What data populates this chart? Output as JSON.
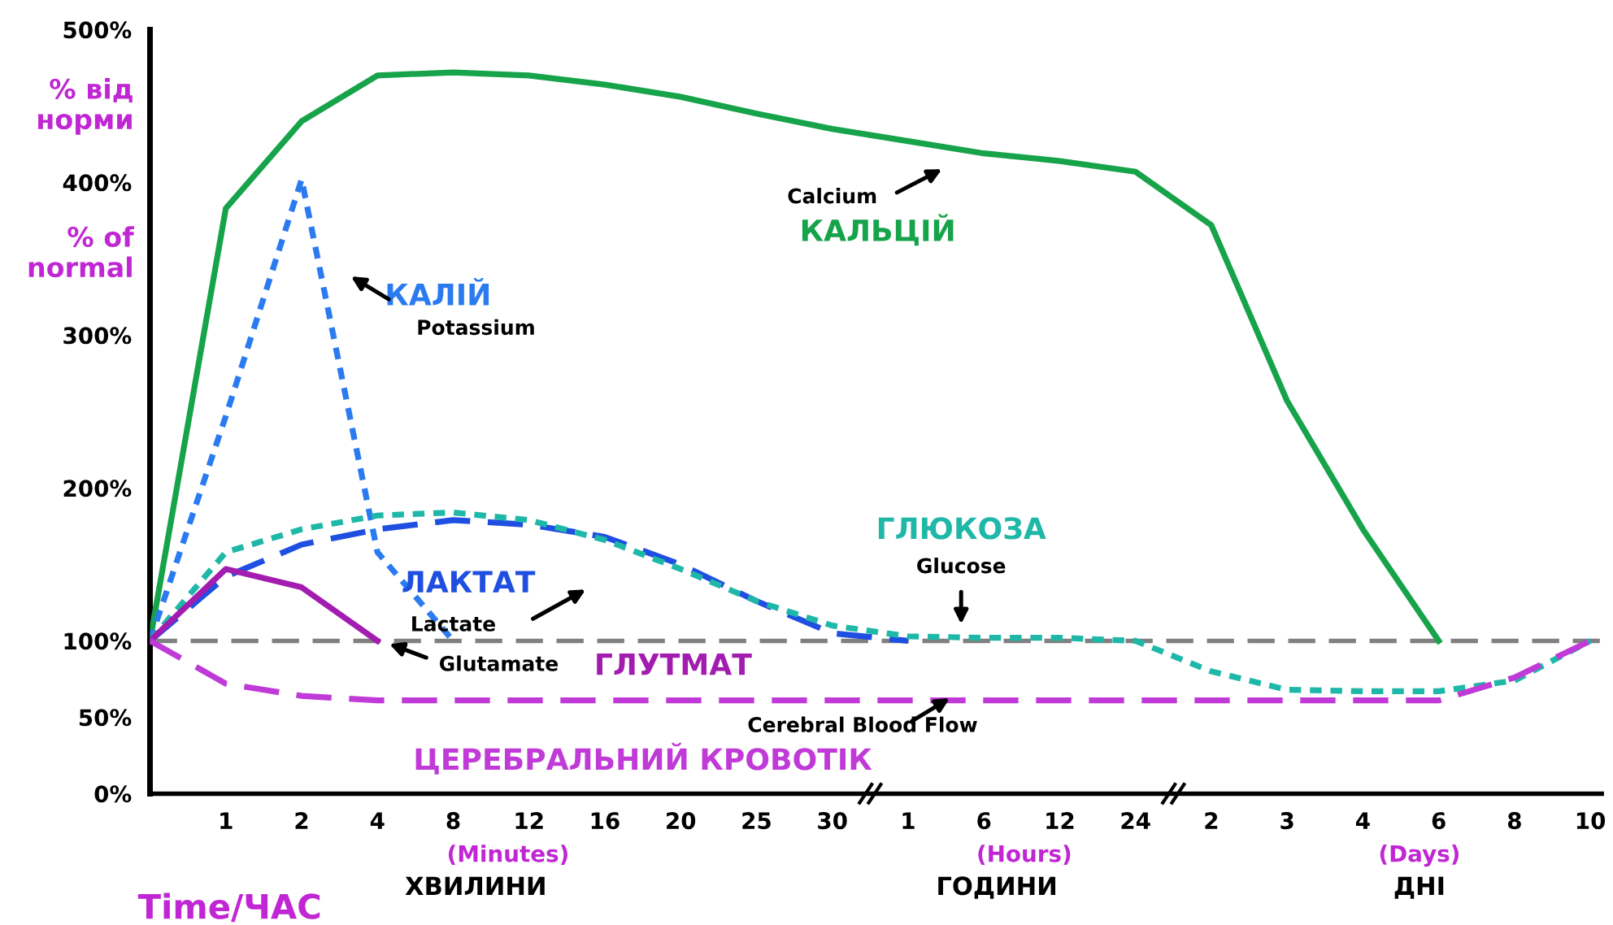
{
  "chart_data": {
    "type": "line",
    "ylabel": "% від норми",
    "xlabel": "Time/ЧАС",
    "categories": [
      null,
      "1",
      "2",
      "4",
      "8",
      "12",
      "16",
      "20",
      "25",
      "30",
      "1",
      "6",
      "12",
      "24",
      "2",
      "3",
      "4",
      "6",
      "8",
      "10"
    ],
    "series": [
      {
        "name": "КАЛЬЦІЙ",
        "color": "#16a34a",
        "line_style": "solid",
        "values": [
          100,
          383,
          440,
          470,
          472,
          470,
          464,
          456,
          445,
          435,
          427,
          419,
          414,
          407,
          372,
          257,
          173,
          100,
          null,
          null
        ]
      },
      {
        "name": "КАЛІЙ",
        "color": "#2b7bf0",
        "line_style": "dotted",
        "values": [
          100,
          247,
          402,
          158,
          100,
          null,
          null,
          null,
          null,
          null,
          null,
          null,
          null,
          null,
          null,
          null,
          null,
          null,
          null,
          null
        ]
      },
      {
        "name": "ЛАКТАТ",
        "color": "#1f4fe0",
        "line_style": "dashed",
        "values": [
          100,
          142,
          163,
          173,
          179,
          176,
          168,
          150,
          126,
          105,
          100,
          null,
          null,
          null,
          null,
          null,
          null,
          null,
          null,
          null
        ]
      },
      {
        "name": "ГЛЮКОЗА",
        "color": "#1fb8a8",
        "line_style": "dotted",
        "values": [
          100,
          158,
          173,
          182,
          184,
          179,
          166,
          147,
          126,
          110,
          103,
          102,
          102,
          100,
          80,
          68,
          67,
          67,
          74,
          100
        ]
      },
      {
        "name": "ГЛУТМАТ",
        "color": "#a21caf",
        "line_style": "solid",
        "values": [
          100,
          147,
          135,
          100,
          null,
          null,
          null,
          null,
          null,
          null,
          null,
          null,
          null,
          null,
          null,
          null,
          null,
          null,
          null,
          null
        ]
      },
      {
        "name": "ЦЕРЕБРАЛЬНИЙ КРОВОТІК",
        "color": "#c03ad8",
        "line_style": "dashed",
        "values": [
          100,
          72,
          64,
          61,
          61,
          61,
          61,
          61,
          61,
          61,
          61,
          61,
          61,
          61,
          61,
          61,
          61,
          61,
          76,
          100
        ]
      }
    ],
    "ylim": [
      0,
      500
    ],
    "yticks": [
      {
        "value": 0,
        "label": "0%"
      },
      {
        "value": 50,
        "label": "50%"
      },
      {
        "value": 100,
        "label": "100%"
      },
      {
        "value": 200,
        "label": "200%"
      },
      {
        "value": 300,
        "label": "300%"
      },
      {
        "value": 400,
        "label": "400%"
      },
      {
        "value": 500,
        "label": "500%"
      }
    ],
    "ref_lines": [
      {
        "axis": "y",
        "value": 100,
        "color": "#808080",
        "line_style": "dashed"
      }
    ],
    "annotations": [
      "% of normal",
      "Calcium",
      "Potassium",
      "Lactate",
      "Glucose",
      "Glutamate",
      "Cerebral Blood Flow",
      "(Minutes)",
      "ХВИЛИНИ",
      "(Hours)",
      "ГОДИНИ",
      "(Days)",
      "ДНІ"
    ],
    "grid": false,
    "legend": false,
    "marker": "none"
  }
}
